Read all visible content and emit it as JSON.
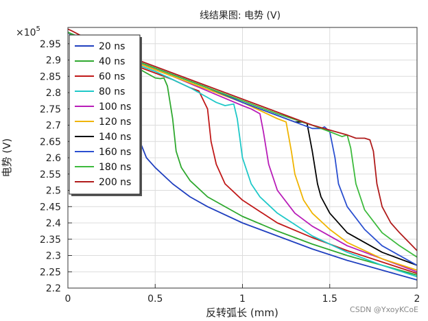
{
  "chart_data": {
    "type": "line",
    "title": "线结果图: 电势 (V)",
    "xlabel": "反转弧长 (mm)",
    "ylabel": "电势 (V)",
    "exponent_label": "×10",
    "exponent_power": "5",
    "xlim": [
      0,
      2
    ],
    "ylim": [
      2.2,
      3.0
    ],
    "xticks": [
      0,
      0.5,
      1,
      1.5,
      2
    ],
    "xtick_labels": [
      "0",
      "0.5",
      "1",
      "1.5",
      "2"
    ],
    "yticks": [
      2.2,
      2.25,
      2.3,
      2.35,
      2.4,
      2.45,
      2.5,
      2.55,
      2.6,
      2.65,
      2.7,
      2.75,
      2.8,
      2.85,
      2.9,
      2.95
    ],
    "ytick_labels": [
      "2.2",
      "2.25",
      "2.3",
      "2.35",
      "2.4",
      "2.45",
      "2.5",
      "2.55",
      "2.6",
      "2.65",
      "2.7",
      "2.75",
      "2.8",
      "2.85",
      "2.9",
      "2.95"
    ],
    "grid": true,
    "legend_position": "top-left",
    "series": [
      {
        "name": "20 ns",
        "color": "#1f3fbf",
        "x": [
          0,
          0.05,
          0.1,
          0.2,
          0.3,
          0.35,
          0.38,
          0.4,
          0.42,
          0.45,
          0.5,
          0.6,
          0.7,
          0.8,
          1.0,
          1.2,
          1.4,
          1.6,
          1.8,
          2.0
        ],
        "y": [
          2.985,
          2.96,
          2.94,
          2.91,
          2.86,
          2.82,
          2.77,
          2.7,
          2.64,
          2.6,
          2.57,
          2.52,
          2.48,
          2.45,
          2.4,
          2.36,
          2.32,
          2.285,
          2.255,
          2.225
        ]
      },
      {
        "name": "40 ns",
        "color": "#2ea82e",
        "x": [
          0,
          0.1,
          0.2,
          0.3,
          0.4,
          0.5,
          0.53,
          0.55,
          0.57,
          0.6,
          0.62,
          0.65,
          0.7,
          0.8,
          1.0,
          1.2,
          1.4,
          1.6,
          1.8,
          2.0
        ],
        "y": [
          2.985,
          2.955,
          2.925,
          2.9,
          2.875,
          2.845,
          2.843,
          2.845,
          2.82,
          2.72,
          2.62,
          2.57,
          2.53,
          2.48,
          2.42,
          2.375,
          2.335,
          2.3,
          2.27,
          2.24
        ]
      },
      {
        "name": "60 ns",
        "color": "#c01818",
        "x": [
          0,
          0.1,
          0.2,
          0.3,
          0.4,
          0.5,
          0.6,
          0.7,
          0.75,
          0.8,
          0.82,
          0.85,
          0.9,
          1.0,
          1.2,
          1.4,
          1.6,
          1.8,
          2.0
        ],
        "y": [
          2.985,
          2.955,
          2.93,
          2.905,
          2.88,
          2.86,
          2.84,
          2.815,
          2.805,
          2.75,
          2.65,
          2.58,
          2.52,
          2.47,
          2.4,
          2.355,
          2.315,
          2.28,
          2.245
        ]
      },
      {
        "name": "80 ns",
        "color": "#1ec8c8",
        "x": [
          0,
          0.1,
          0.2,
          0.3,
          0.4,
          0.5,
          0.6,
          0.7,
          0.8,
          0.85,
          0.9,
          0.95,
          0.97,
          1.0,
          1.05,
          1.1,
          1.2,
          1.4,
          1.6,
          1.8,
          2.0
        ],
        "y": [
          2.985,
          2.955,
          2.93,
          2.905,
          2.885,
          2.865,
          2.84,
          2.815,
          2.785,
          2.77,
          2.76,
          2.765,
          2.72,
          2.6,
          2.52,
          2.48,
          2.43,
          2.36,
          2.31,
          2.27,
          2.235
        ]
      },
      {
        "name": "100 ns",
        "color": "#b81cb8",
        "x": [
          0,
          0.2,
          0.4,
          0.6,
          0.8,
          1.0,
          1.05,
          1.1,
          1.12,
          1.15,
          1.2,
          1.3,
          1.4,
          1.6,
          1.8,
          2.0
        ],
        "y": [
          2.985,
          2.935,
          2.89,
          2.85,
          2.805,
          2.76,
          2.75,
          2.735,
          2.68,
          2.58,
          2.5,
          2.43,
          2.39,
          2.33,
          2.29,
          2.25
        ]
      },
      {
        "name": "120 ns",
        "color": "#f0b400",
        "x": [
          0,
          0.2,
          0.4,
          0.6,
          0.8,
          1.0,
          1.1,
          1.2,
          1.25,
          1.28,
          1.3,
          1.35,
          1.4,
          1.5,
          1.6,
          1.8,
          2.0
        ],
        "y": [
          2.985,
          2.935,
          2.89,
          2.85,
          2.81,
          2.77,
          2.745,
          2.72,
          2.71,
          2.62,
          2.55,
          2.47,
          2.43,
          2.38,
          2.34,
          2.29,
          2.255
        ]
      },
      {
        "name": "140 ns",
        "color": "#000000",
        "x": [
          0,
          0.2,
          0.4,
          0.6,
          0.8,
          1.0,
          1.1,
          1.2,
          1.3,
          1.34,
          1.37,
          1.4,
          1.43,
          1.45,
          1.5,
          1.6,
          1.8,
          2.0
        ],
        "y": [
          2.985,
          2.94,
          2.895,
          2.855,
          2.815,
          2.77,
          2.75,
          2.73,
          2.71,
          2.71,
          2.705,
          2.62,
          2.52,
          2.48,
          2.43,
          2.37,
          2.31,
          2.27
        ]
      },
      {
        "name": "160 ns",
        "color": "#2a4fd0",
        "x": [
          0,
          0.2,
          0.4,
          0.6,
          0.8,
          1.0,
          1.2,
          1.4,
          1.45,
          1.47,
          1.5,
          1.53,
          1.55,
          1.6,
          1.7,
          1.8,
          2.0
        ],
        "y": [
          2.985,
          2.94,
          2.895,
          2.855,
          2.815,
          2.77,
          2.73,
          2.69,
          2.69,
          2.695,
          2.68,
          2.6,
          2.52,
          2.45,
          2.38,
          2.33,
          2.27
        ]
      },
      {
        "name": "180 ns",
        "color": "#3cba3c",
        "x": [
          0,
          0.2,
          0.4,
          0.6,
          0.8,
          1.0,
          1.2,
          1.4,
          1.5,
          1.57,
          1.6,
          1.62,
          1.65,
          1.7,
          1.8,
          1.9,
          2.0
        ],
        "y": [
          2.985,
          2.94,
          2.895,
          2.855,
          2.815,
          2.775,
          2.735,
          2.7,
          2.68,
          2.665,
          2.67,
          2.63,
          2.52,
          2.44,
          2.37,
          2.33,
          2.295
        ]
      },
      {
        "name": "200 ns",
        "color": "#b01a1a",
        "x": [
          0,
          0.02,
          0.2,
          0.4,
          0.6,
          0.8,
          1.0,
          1.2,
          1.4,
          1.6,
          1.65,
          1.7,
          1.73,
          1.75,
          1.77,
          1.8,
          1.85,
          1.9,
          2.0
        ],
        "y": [
          2.995,
          2.99,
          2.94,
          2.9,
          2.86,
          2.82,
          2.78,
          2.74,
          2.7,
          2.67,
          2.66,
          2.66,
          2.655,
          2.62,
          2.52,
          2.45,
          2.4,
          2.37,
          2.315
        ]
      }
    ]
  },
  "watermark": "CSDN @YxoyKCoE"
}
